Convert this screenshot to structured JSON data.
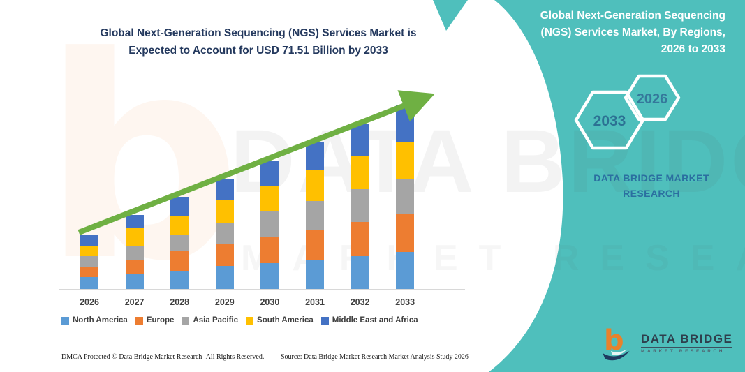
{
  "chart_section": {
    "title_lines": [
      "Global Next-Generation Sequencing (NGS) Services Market is",
      "Expected to Account for USD 71.51 Billion by 2033"
    ]
  },
  "chart_data": {
    "type": "bar",
    "stacked": true,
    "title": "Global Next-Generation Sequencing (NGS) Services Market is Expected to Account for USD 71.51 Billion by 2033",
    "unit": "USD Billion",
    "categories": [
      "2026",
      "2027",
      "2028",
      "2029",
      "2030",
      "2031",
      "2032",
      "2033"
    ],
    "series": [
      {
        "name": "North America",
        "color": "#5B9BD5",
        "values": [
          4.6,
          5.9,
          6.8,
          9.1,
          10.1,
          11.3,
          12.9,
          14.5
        ]
      },
      {
        "name": "Europe",
        "color": "#ED7D31",
        "values": [
          4.1,
          5.6,
          7.9,
          8.3,
          10.3,
          11.8,
          13.1,
          14.8
        ]
      },
      {
        "name": "Asia Pacific",
        "color": "#A5A5A5",
        "values": [
          4.1,
          5.3,
          6.6,
          8.4,
          9.7,
          11.1,
          13.0,
          13.6
        ]
      },
      {
        "name": "South America",
        "color": "#FFC000",
        "values": [
          4.1,
          6.8,
          7.3,
          8.8,
          10.0,
          12.0,
          12.9,
          14.5
        ]
      },
      {
        "name": "Middle East and Africa",
        "color": "#4472C4",
        "values": [
          4.1,
          5.2,
          7.3,
          8.2,
          10.0,
          10.9,
          12.7,
          14.1
        ]
      }
    ],
    "totals_estimated": [
      21.0,
      28.8,
      35.9,
      42.8,
      50.1,
      57.1,
      64.6,
      71.51
    ],
    "ylim": [
      0,
      80
    ],
    "grid": false,
    "legend_position": "bottom",
    "annotations": [
      "green upward trend arrow from 2026 to 2033"
    ],
    "trend_arrow_color": "#6FB043"
  },
  "side_panel": {
    "accent_color": "#4FBFBC",
    "title_lines": [
      "Global Next-Generation Sequencing",
      "(NGS) Services Market, By Regions,",
      "2026 to 2033"
    ],
    "hexagons": [
      {
        "label": "2033",
        "text_color": "#2C7193"
      },
      {
        "label": "2026",
        "text_color": "#35789B"
      }
    ],
    "brand_lines": [
      "DATA BRIDGE MARKET",
      "RESEARCH"
    ]
  },
  "watermark": {
    "big_text": "DATA BRIDGE",
    "sub_text": "MARKET RESEARCH",
    "blob_glyph": "b"
  },
  "footer": {
    "dmca": "DMCA Protected © Data Bridge Market Research-  All Rights Reserved.",
    "source": "Source: Data Bridge Market Research  Market Analysis Study 2026"
  },
  "logo": {
    "name": "DATA BRIDGE",
    "subtitle": "MARKET RESEARCH"
  }
}
